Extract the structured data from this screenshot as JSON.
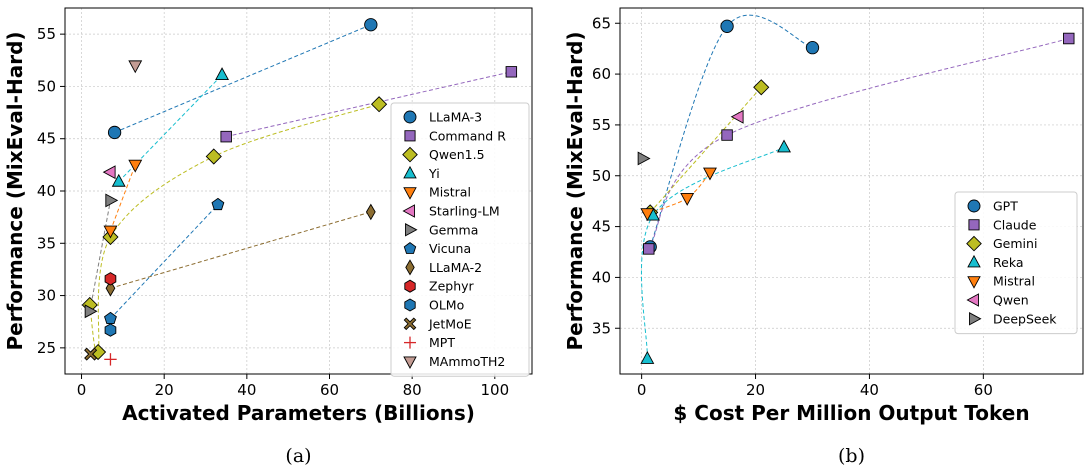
{
  "chart_data": [
    {
      "type": "scatter",
      "caption": "(a)",
      "xlabel": "Activated Parameters (Billions)",
      "ylabel": "Performance (MixEval-Hard)",
      "xlim": [
        -4,
        109
      ],
      "ylim": [
        22.5,
        57.5
      ],
      "xticks": [
        0,
        20,
        40,
        60,
        80,
        100
      ],
      "yticks": [
        25,
        30,
        35,
        40,
        45,
        50,
        55
      ],
      "grid": true,
      "legend": "right",
      "series": [
        {
          "name": "LLaMA-3",
          "color": "#1f77b4",
          "marker": "circle",
          "x": [
            8,
            70
          ],
          "y": [
            45.6,
            55.9
          ]
        },
        {
          "name": "Command R",
          "color": "#9467bd",
          "marker": "square",
          "x": [
            35,
            104
          ],
          "y": [
            45.2,
            51.4
          ]
        },
        {
          "name": "Qwen1.5",
          "color": "#bcbd22",
          "marker": "diamond",
          "x": [
            2,
            4,
            7,
            32,
            72
          ],
          "y": [
            29.1,
            24.6,
            35.6,
            43.3,
            48.3
          ]
        },
        {
          "name": "Yi",
          "color": "#17becf",
          "marker": "triangle-up",
          "x": [
            9,
            34
          ],
          "y": [
            40.9,
            51.1
          ]
        },
        {
          "name": "Mistral",
          "color": "#ff7f0e",
          "marker": "triangle-down",
          "x": [
            7,
            13
          ],
          "y": [
            36.2,
            42.5
          ]
        },
        {
          "name": "Starling-LM",
          "color": "#e377c2",
          "marker": "triangle-left",
          "x": [
            7
          ],
          "y": [
            41.8
          ]
        },
        {
          "name": "Gemma",
          "color": "#7f7f7f",
          "marker": "triangle-right",
          "x": [
            2,
            7
          ],
          "y": [
            28.5,
            39.1
          ]
        },
        {
          "name": "Vicuna",
          "color": "#1f77b4",
          "marker": "pentagon",
          "x": [
            7,
            33
          ],
          "y": [
            27.8,
            38.7
          ]
        },
        {
          "name": "LLaMA-2",
          "color": "#8c6d31",
          "marker": "thin-diamond",
          "x": [
            7,
            70
          ],
          "y": [
            30.7,
            38.0
          ]
        },
        {
          "name": "Zephyr",
          "color": "#d62728",
          "marker": "hexagon",
          "x": [
            7
          ],
          "y": [
            31.6
          ]
        },
        {
          "name": "OLMo",
          "color": "#1f77b4",
          "marker": "hexagon",
          "x": [
            7
          ],
          "y": [
            26.7
          ]
        },
        {
          "name": "JetMoE",
          "color": "#8c6d31",
          "marker": "x",
          "x": [
            2.2
          ],
          "y": [
            24.4
          ]
        },
        {
          "name": "MPT",
          "color": "#d62728",
          "marker": "plus",
          "x": [
            7
          ],
          "y": [
            23.9
          ]
        },
        {
          "name": "MAmmoTH2",
          "color": "#c49c94",
          "marker": "triangle-down",
          "x": [
            13
          ],
          "y": [
            52.0
          ]
        }
      ]
    },
    {
      "type": "scatter",
      "caption": "(b)",
      "xlabel": "$ Cost Per Million Output Token",
      "ylabel": "Performance (MixEval-Hard)",
      "xlim": [
        -3.8,
        77.5
      ],
      "ylim": [
        30.5,
        66.5
      ],
      "xticks": [
        0,
        20,
        40,
        60
      ],
      "yticks": [
        35,
        40,
        45,
        50,
        55,
        60,
        65
      ],
      "grid": true,
      "legend": "right",
      "series": [
        {
          "name": "GPT",
          "color": "#1f77b4",
          "marker": "circle",
          "x": [
            1.5,
            15,
            30
          ],
          "y": [
            43.0,
            64.7,
            62.6
          ]
        },
        {
          "name": "Claude",
          "color": "#9467bd",
          "marker": "square",
          "x": [
            1.25,
            15,
            75
          ],
          "y": [
            42.8,
            54.0,
            63.5
          ]
        },
        {
          "name": "Gemini",
          "color": "#bcbd22",
          "marker": "diamond",
          "x": [
            1.5,
            21
          ],
          "y": [
            46.4,
            58.7
          ]
        },
        {
          "name": "Reka",
          "color": "#17becf",
          "marker": "triangle-up",
          "x": [
            1,
            2,
            25
          ],
          "y": [
            32.0,
            46.1,
            52.8
          ]
        },
        {
          "name": "Mistral",
          "color": "#ff7f0e",
          "marker": "triangle-down",
          "x": [
            1,
            8,
            12
          ],
          "y": [
            46.3,
            47.8,
            50.3
          ]
        },
        {
          "name": "Qwen",
          "color": "#e377c2",
          "marker": "triangle-left",
          "x": [
            17
          ],
          "y": [
            55.8
          ]
        },
        {
          "name": "DeepSeek",
          "color": "#7f7f7f",
          "marker": "triangle-right",
          "x": [
            0.2
          ],
          "y": [
            51.7
          ]
        }
      ]
    }
  ]
}
